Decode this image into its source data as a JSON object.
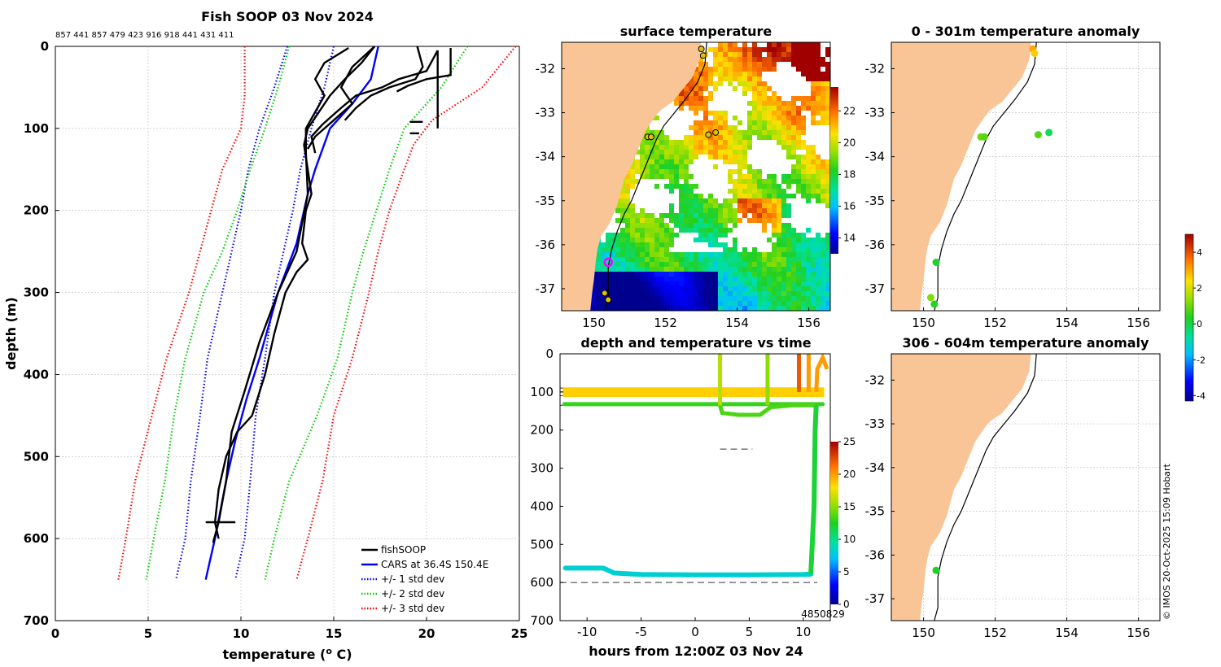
{
  "chart_data": [
    {
      "type": "line",
      "title": "Fish SOOP 03 Nov 2024",
      "subtitle": "857 441 857 479 423 916 918 441 431 411",
      "xlabel": "temperature (",
      "xlabel_sup": "o",
      "xlabel_unit": " C)",
      "ylabel": "depth (m)",
      "xlim": [
        0,
        25
      ],
      "ylim": [
        0,
        700
      ],
      "y_reversed": true,
      "xticks": [
        "0",
        "5",
        "10",
        "15",
        "20",
        "25"
      ],
      "yticks": [
        "0",
        "100",
        "200",
        "300",
        "400",
        "500",
        "600",
        "700"
      ],
      "grid": true,
      "legend_position": "bottom-right",
      "legend": [
        {
          "label": "fishSOOP",
          "color": "#000000",
          "style": "solid"
        },
        {
          "label": "CARS at 36.4S 150.4E",
          "color": "#0000ff",
          "style": "solid"
        },
        {
          "label": "+/- 1 std dev",
          "color": "#0000ff",
          "style": "dotted"
        },
        {
          "label": "+/- 2 std dev",
          "color": "#00cc00",
          "style": "dotted"
        },
        {
          "label": "+/- 3 std dev",
          "color": "#ff0000",
          "style": "dotted"
        }
      ],
      "series": [
        {
          "name": "CARS",
          "color": "#0000ff",
          "style": "solid",
          "points": [
            [
              17.4,
              0
            ],
            [
              17.0,
              40
            ],
            [
              16.0,
              70
            ],
            [
              14.8,
              100
            ],
            [
              14.0,
              150
            ],
            [
              13.6,
              180
            ],
            [
              13.0,
              240
            ],
            [
              12.0,
              300
            ],
            [
              11.0,
              380
            ],
            [
              10.3,
              430
            ],
            [
              9.7,
              480
            ],
            [
              9.2,
              530
            ],
            [
              8.6,
              600
            ],
            [
              8.1,
              650
            ]
          ]
        },
        {
          "name": "+1 std",
          "color": "#0000ff",
          "style": "dotted",
          "points": [
            [
              15.0,
              0
            ],
            [
              14.5,
              50
            ],
            [
              13.8,
              100
            ],
            [
              13.2,
              150
            ],
            [
              12.8,
              200
            ],
            [
              12.3,
              250
            ],
            [
              11.8,
              300
            ],
            [
              11.3,
              380
            ],
            [
              10.8,
              450
            ],
            [
              10.5,
              530
            ],
            [
              10.2,
              600
            ],
            [
              9.7,
              650
            ]
          ]
        },
        {
          "name": "-1 std",
          "color": "#0000ff",
          "style": "dotted",
          "points": [
            [
              12.5,
              0
            ],
            [
              11.8,
              50
            ],
            [
              11.0,
              100
            ],
            [
              10.4,
              150
            ],
            [
              10.0,
              200
            ],
            [
              9.5,
              250
            ],
            [
              9.0,
              300
            ],
            [
              8.2,
              380
            ],
            [
              7.8,
              450
            ],
            [
              7.3,
              530
            ],
            [
              7.0,
              600
            ],
            [
              6.5,
              650
            ]
          ]
        },
        {
          "name": "+2 std",
          "color": "#00cc00",
          "style": "dotted",
          "points": [
            [
              22.2,
              0
            ],
            [
              20.8,
              50
            ],
            [
              18.8,
              100
            ],
            [
              18.0,
              150
            ],
            [
              17.3,
              200
            ],
            [
              16.6,
              250
            ],
            [
              16.0,
              300
            ],
            [
              15.2,
              380
            ],
            [
              14.1,
              450
            ],
            [
              12.6,
              530
            ],
            [
              11.8,
              600
            ],
            [
              11.3,
              650
            ]
          ]
        },
        {
          "name": "-2 std",
          "color": "#00cc00",
          "style": "dotted",
          "points": [
            [
              12.6,
              0
            ],
            [
              12.0,
              50
            ],
            [
              11.3,
              100
            ],
            [
              10.5,
              150
            ],
            [
              9.8,
              200
            ],
            [
              9.0,
              250
            ],
            [
              8.0,
              300
            ],
            [
              7.0,
              380
            ],
            [
              6.4,
              450
            ],
            [
              5.9,
              530
            ],
            [
              5.3,
              600
            ],
            [
              4.9,
              650
            ]
          ]
        },
        {
          "name": "+3 std",
          "color": "#ff0000",
          "style": "dotted",
          "points": [
            [
              24.8,
              0
            ],
            [
              23.0,
              50
            ],
            [
              20.3,
              90
            ],
            [
              19.3,
              120
            ],
            [
              18.8,
              150
            ],
            [
              18.0,
              200
            ],
            [
              17.4,
              250
            ],
            [
              16.9,
              300
            ],
            [
              16.0,
              380
            ],
            [
              15.0,
              450
            ],
            [
              14.4,
              530
            ],
            [
              13.6,
              600
            ],
            [
              13.0,
              650
            ]
          ]
        },
        {
          "name": "-3 std",
          "color": "#ff0000",
          "style": "dotted",
          "points": [
            [
              10.2,
              0
            ],
            [
              10.2,
              60
            ],
            [
              10.0,
              100
            ],
            [
              9.0,
              150
            ],
            [
              8.4,
              200
            ],
            [
              7.8,
              250
            ],
            [
              7.2,
              300
            ],
            [
              6.0,
              380
            ],
            [
              5.2,
              450
            ],
            [
              4.3,
              530
            ],
            [
              3.8,
              600
            ],
            [
              3.4,
              650
            ]
          ]
        },
        {
          "name": "fishSOOP 1",
          "color": "#000000",
          "style": "solid",
          "points": [
            [
              17.2,
              0
            ],
            [
              16.5,
              20
            ],
            [
              15.6,
              40
            ],
            [
              14.8,
              60
            ],
            [
              14.2,
              80
            ],
            [
              13.6,
              100
            ],
            [
              13.4,
              120
            ],
            [
              13.6,
              150
            ],
            [
              13.8,
              180
            ],
            [
              13.5,
              200
            ],
            [
              13.3,
              240
            ],
            [
              13.6,
              260
            ],
            [
              13.0,
              275
            ],
            [
              12.4,
              300
            ],
            [
              11.8,
              350
            ],
            [
              11.3,
              400
            ],
            [
              10.6,
              450
            ],
            [
              9.8,
              470
            ],
            [
              9.2,
              500
            ],
            [
              8.8,
              540
            ],
            [
              8.6,
              580
            ],
            [
              8.8,
              600
            ]
          ]
        },
        {
          "name": "fishSOOP 2",
          "color": "#000000",
          "style": "solid",
          "points": [
            [
              15.8,
              2
            ],
            [
              14.5,
              20
            ],
            [
              14.0,
              40
            ],
            [
              14.5,
              60
            ],
            [
              14.0,
              80
            ],
            [
              13.5,
              100
            ],
            [
              13.5,
              130
            ],
            [
              13.6,
              180
            ],
            [
              13.0,
              250
            ],
            [
              12.0,
              300
            ],
            [
              11.0,
              360
            ],
            [
              10.2,
              420
            ],
            [
              9.5,
              470
            ],
            [
              9.2,
              530
            ],
            [
              8.8,
              580
            ],
            [
              8.5,
              605
            ]
          ]
        },
        {
          "name": "fishSOOP 3",
          "color": "#000000",
          "style": "solid",
          "points": [
            [
              17.2,
              0
            ],
            [
              16.0,
              25
            ],
            [
              15.4,
              50
            ],
            [
              16.0,
              70
            ],
            [
              15.0,
              90
            ],
            [
              14.0,
              110
            ],
            [
              13.6,
              125
            ]
          ]
        },
        {
          "name": "fishSOOP 4",
          "color": "#000000",
          "style": "solid",
          "points": [
            [
              20.6,
              5
            ],
            [
              20.0,
              30
            ],
            [
              18.5,
              40
            ],
            [
              17.6,
              50
            ],
            [
              16.2,
              60
            ],
            [
              15.4,
              75
            ],
            [
              14.4,
              95
            ],
            [
              13.8,
              110
            ],
            [
              14.0,
              130
            ]
          ]
        },
        {
          "name": "fishSOOP 5",
          "color": "#000000",
          "style": "solid",
          "points": [
            [
              19.5,
              0
            ],
            [
              19.8,
              25
            ],
            [
              19.4,
              40
            ],
            [
              18.0,
              50
            ],
            [
              17.0,
              60
            ],
            [
              16.2,
              75
            ],
            [
              15.6,
              90
            ]
          ]
        },
        {
          "name": "fishSOOP 6",
          "color": "#000000",
          "style": "solid",
          "points": [
            [
              21.3,
              2
            ],
            [
              21.3,
              35
            ],
            [
              20.0,
              40
            ],
            [
              19.0,
              48
            ],
            [
              18.4,
              55
            ]
          ]
        },
        {
          "name": "fishSOOP 7",
          "color": "#000000",
          "style": "solid",
          "points": [
            [
              20.6,
              5
            ],
            [
              20.6,
              100
            ]
          ]
        },
        {
          "name": "fishSOOP 8",
          "color": "#000000",
          "style": "solid",
          "points": [
            [
              19.1,
              92
            ],
            [
              19.8,
              92
            ]
          ]
        },
        {
          "name": "fishSOOP 9",
          "color": "#000000",
          "style": "solid",
          "points": [
            [
              19.1,
              106
            ],
            [
              19.6,
              106
            ]
          ]
        },
        {
          "name": "fishSOOP 10",
          "color": "#000000",
          "style": "solid",
          "points": [
            [
              8.1,
              580
            ],
            [
              9.7,
              580
            ]
          ]
        }
      ]
    },
    {
      "type": "heatmap",
      "title": "surface temperature",
      "x_ticks": [
        "150",
        "152",
        "154",
        "156"
      ],
      "y_ticks": [
        "-32",
        "-33",
        "-34",
        "-35",
        "-36",
        "-37"
      ],
      "xlim": [
        149.1,
        156.6
      ],
      "ylim": [
        -37.5,
        -31.4
      ],
      "colorbar_ticks": [
        "14",
        "16",
        "18",
        "20",
        "22"
      ],
      "colorbar_range": [
        13,
        23.5
      ],
      "stations": [
        [
          153.0,
          -31.55
        ],
        [
          153.05,
          -31.7
        ],
        [
          151.5,
          -33.55
        ],
        [
          151.6,
          -33.55
        ],
        [
          153.2,
          -33.5
        ],
        [
          153.4,
          -33.45
        ],
        [
          150.3,
          -37.1
        ],
        [
          150.4,
          -37.25
        ]
      ],
      "highlight_station": [
        150.4,
        -36.4
      ]
    },
    {
      "type": "scatter",
      "title": "0 - 301m temperature anomaly",
      "x_ticks": [
        "150",
        "152",
        "154",
        "156"
      ],
      "y_ticks": [
        "-32",
        "-33",
        "-34",
        "-35",
        "-36",
        "-37"
      ],
      "xlim": [
        149.1,
        156.6
      ],
      "ylim": [
        -37.5,
        -31.4
      ],
      "points": [
        {
          "lon": 153.05,
          "lat": -31.55,
          "anom": 3.0
        },
        {
          "lon": 153.1,
          "lat": -31.65,
          "anom": 2.6
        },
        {
          "lon": 151.6,
          "lat": -33.55,
          "anom": 1.0
        },
        {
          "lon": 151.7,
          "lat": -33.55,
          "anom": 0.8
        },
        {
          "lon": 153.2,
          "lat": -33.5,
          "anom": 0.8
        },
        {
          "lon": 153.5,
          "lat": -33.45,
          "anom": -0.2
        },
        {
          "lon": 150.35,
          "lat": -36.4,
          "anom": 0.2
        },
        {
          "lon": 150.2,
          "lat": -37.2,
          "anom": 1.2
        },
        {
          "lon": 150.3,
          "lat": -37.35,
          "anom": 0.4
        }
      ]
    },
    {
      "type": "scatter",
      "title": "306 - 604m temperature anomaly",
      "x_ticks": [
        "150",
        "152",
        "154",
        "156"
      ],
      "y_ticks": [
        "-32",
        "-33",
        "-34",
        "-35",
        "-36",
        "-37"
      ],
      "xlim": [
        149.1,
        156.6
      ],
      "ylim": [
        -37.5,
        -31.4
      ],
      "points": [
        {
          "lon": 150.35,
          "lat": -36.35,
          "anom": 0.3
        }
      ],
      "colorbar_ticks": [
        "4",
        "2",
        "0",
        "-2",
        "-4"
      ],
      "colorbar_range": [
        -4.3,
        5
      ]
    },
    {
      "type": "scatter",
      "title": "depth and temperature vs time",
      "xlabel": "hours from 12:00Z 03 Nov 24",
      "x_ticks": [
        "-10",
        "-5",
        "0",
        "5",
        "10"
      ],
      "y_ticks": [
        "0",
        "100",
        "200",
        "300",
        "400",
        "500",
        "600",
        "700"
      ],
      "xlim": [
        -12.5,
        12.5
      ],
      "ylim": [
        0,
        700
      ],
      "colorbar_ticks": [
        "0",
        "5",
        "10",
        "15",
        "20",
        "25"
      ],
      "colorbar_range": [
        0,
        25
      ],
      "dashed_levels": [
        90,
        100,
        110,
        135,
        600
      ],
      "short_dash": {
        "x": [
          2.3,
          5.3
        ],
        "depth": 250
      },
      "label": "4850829"
    }
  ],
  "footer": {
    "credit": "© IMOS 20-Oct-2025 15:09 Hobart"
  },
  "colors": {
    "land": "#f9c596",
    "cars": "#0000ff",
    "std1": "#0000ff",
    "std2": "#00cc00",
    "std3": "#ff0000",
    "soop": "#000000"
  }
}
